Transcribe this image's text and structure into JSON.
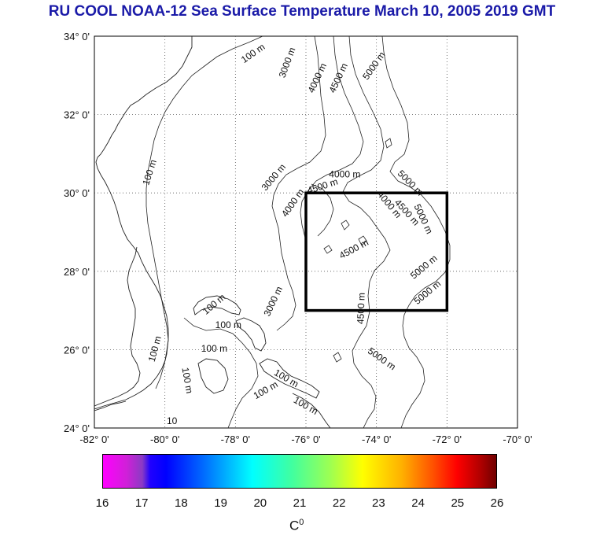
{
  "title": "RU COOL  NOAA-12 Sea Surface Temperature March 10, 2005 2019 GMT",
  "map": {
    "lat_labels": [
      "34° 0'",
      "32° 0'",
      "30° 0'",
      "28° 0'",
      "26° 0'",
      "24° 0'"
    ],
    "lon_labels": [
      "-82° 0'",
      "-80° 0'",
      "-78° 0'",
      "-76° 0'",
      "-74° 0'",
      "-72° 0'",
      "-70° 0'"
    ],
    "lat_range": [
      24,
      34
    ],
    "lon_range": [
      -82,
      -70
    ],
    "grid": "dotted",
    "box": {
      "lon": [
        -76,
        -72
      ],
      "lat": [
        27,
        30
      ]
    },
    "contour_labels": [
      {
        "text": "100 m",
        "lon": -77.45,
        "lat": 33.5,
        "rot": -35
      },
      {
        "text": "3000 m",
        "lon": -76.45,
        "lat": 33.3,
        "rot": -70
      },
      {
        "text": "4000 m",
        "lon": -75.6,
        "lat": 32.9,
        "rot": -65
      },
      {
        "text": "4500 m",
        "lon": -75.0,
        "lat": 32.9,
        "rot": -65
      },
      {
        "text": "5000 m",
        "lon": -74.0,
        "lat": 33.2,
        "rot": -55
      },
      {
        "text": "100 m",
        "lon": -80.35,
        "lat": 30.5,
        "rot": -72
      },
      {
        "text": "3000 m",
        "lon": -76.85,
        "lat": 30.35,
        "rot": -50
      },
      {
        "text": "4000 m",
        "lon": -74.9,
        "lat": 30.4,
        "rot": 0
      },
      {
        "text": "4500 m",
        "lon": -75.5,
        "lat": 30.1,
        "rot": -18
      },
      {
        "text": "5000 m",
        "lon": -73.1,
        "lat": 30.2,
        "rot": 45
      },
      {
        "text": "4000 m",
        "lon": -73.7,
        "lat": 29.65,
        "rot": 50
      },
      {
        "text": "4500 m",
        "lon": -73.2,
        "lat": 29.45,
        "rot": 48
      },
      {
        "text": "5000 m",
        "lon": -72.75,
        "lat": 29.3,
        "rot": 65
      },
      {
        "text": "4000 m",
        "lon": -76.3,
        "lat": 29.7,
        "rot": -55
      },
      {
        "text": "4500 m",
        "lon": -74.6,
        "lat": 28.5,
        "rot": -28
      },
      {
        "text": "5000 m",
        "lon": -72.6,
        "lat": 28.05,
        "rot": -40
      },
      {
        "text": "5000 m",
        "lon": -72.5,
        "lat": 27.4,
        "rot": -40
      },
      {
        "text": "4500 m",
        "lon": -74.35,
        "lat": 27.05,
        "rot": -88
      },
      {
        "text": "3000 m",
        "lon": -76.85,
        "lat": 27.2,
        "rot": -65
      },
      {
        "text": "100 m",
        "lon": -78.55,
        "lat": 27.1,
        "rot": -40
      },
      {
        "text": "100 m",
        "lon": -78.2,
        "lat": 26.55,
        "rot": 0
      },
      {
        "text": "100 m",
        "lon": -80.2,
        "lat": 26.0,
        "rot": -75
      },
      {
        "text": "100 m",
        "lon": -78.6,
        "lat": 25.95,
        "rot": 0
      },
      {
        "text": "100 m",
        "lon": -79.45,
        "lat": 25.2,
        "rot": 80
      },
      {
        "text": "5000 m",
        "lon": -73.9,
        "lat": 25.7,
        "rot": 35
      },
      {
        "text": "100 m",
        "lon": -77.1,
        "lat": 24.9,
        "rot": -30
      },
      {
        "text": "100 m",
        "lon": -76.6,
        "lat": 25.2,
        "rot": 30
      },
      {
        "text": "100 m",
        "lon": -76.05,
        "lat": 24.5,
        "rot": 30
      },
      {
        "text": "10",
        "lon": -79.8,
        "lat": 24.1,
        "rot": 0
      }
    ]
  },
  "colorbar": {
    "labels": [
      "16",
      "17",
      "18",
      "19",
      "20",
      "21",
      "22",
      "23",
      "24",
      "25",
      "26"
    ],
    "min": 16,
    "max": 26,
    "unit_base": "C",
    "unit_sup": "0"
  }
}
